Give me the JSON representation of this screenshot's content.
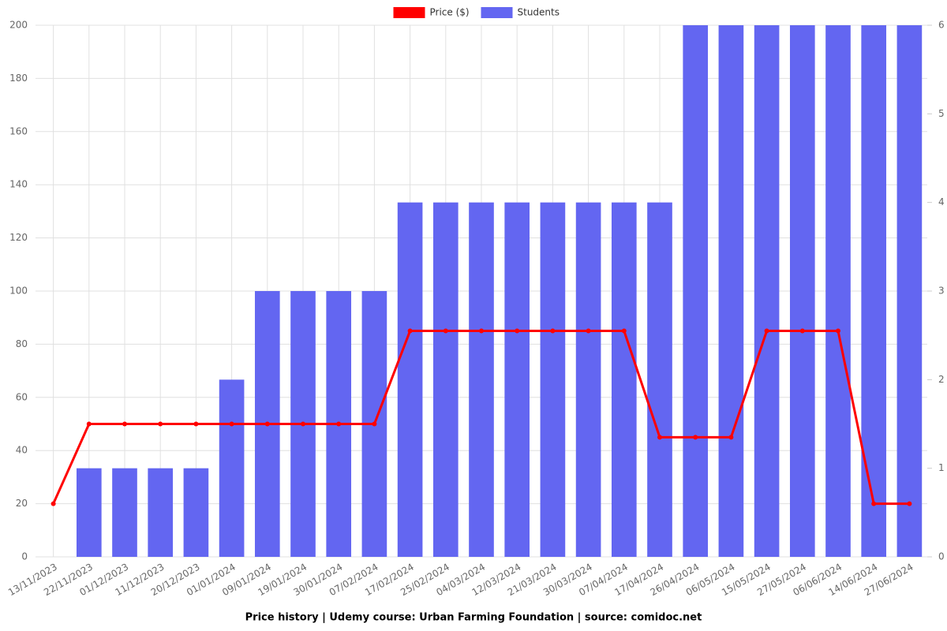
{
  "chart_data": {
    "type": "bar",
    "title": "Price history | Udemy course: Urban Farming Foundation | source: comidoc.net",
    "categories": [
      "13/11/2023",
      "22/11/2023",
      "01/12/2023",
      "11/12/2023",
      "20/12/2023",
      "01/01/2024",
      "09/01/2024",
      "19/01/2024",
      "30/01/2024",
      "07/02/2024",
      "17/02/2024",
      "25/02/2024",
      "04/03/2024",
      "12/03/2024",
      "21/03/2024",
      "30/03/2024",
      "07/04/2024",
      "17/04/2024",
      "26/04/2024",
      "06/05/2024",
      "15/05/2024",
      "27/05/2024",
      "06/06/2024",
      "14/06/2024",
      "27/06/2024"
    ],
    "series": [
      {
        "name": "Price ($)",
        "type": "line",
        "axis": "y",
        "color": "#ff0000",
        "values": [
          20,
          50,
          50,
          50,
          50,
          50,
          50,
          50,
          50,
          50,
          85,
          85,
          85,
          85,
          85,
          85,
          85,
          45,
          45,
          45,
          85,
          85,
          85,
          20,
          20
        ]
      },
      {
        "name": "Students",
        "type": "bar",
        "axis": "y2",
        "color": "#6366f1",
        "values": [
          0,
          1,
          1,
          1,
          1,
          2,
          3,
          3,
          3,
          3,
          4,
          4,
          4,
          4,
          4,
          4,
          4,
          4,
          6,
          6,
          6,
          6,
          6,
          6,
          6
        ]
      }
    ],
    "ylim": [
      0,
      200
    ],
    "yticks": [
      0,
      20,
      40,
      60,
      80,
      100,
      120,
      140,
      160,
      180,
      200
    ],
    "y2lim": [
      0,
      6
    ],
    "y2ticks": [
      0,
      1,
      2,
      3,
      4,
      5,
      6
    ],
    "grid": true,
    "legend": "top"
  }
}
